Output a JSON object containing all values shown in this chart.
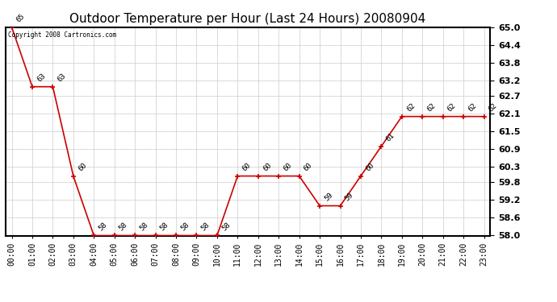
{
  "title": "Outdoor Temperature per Hour (Last 24 Hours) 20080904",
  "copyright_text": "Copyright 2008 Cartronics.com",
  "hours": [
    0,
    1,
    2,
    3,
    4,
    5,
    6,
    7,
    8,
    9,
    10,
    11,
    12,
    13,
    14,
    15,
    16,
    17,
    18,
    19,
    20,
    21,
    22,
    23
  ],
  "hour_labels": [
    "00:00",
    "01:00",
    "02:00",
    "03:00",
    "04:00",
    "05:00",
    "06:00",
    "07:00",
    "08:00",
    "09:00",
    "10:00",
    "11:00",
    "12:00",
    "13:00",
    "14:00",
    "15:00",
    "16:00",
    "17:00",
    "18:00",
    "19:00",
    "20:00",
    "21:00",
    "22:00",
    "23:00"
  ],
  "temps": [
    65,
    63,
    63,
    60,
    58,
    58,
    58,
    58,
    58,
    58,
    58,
    60,
    60,
    60,
    60,
    59,
    59,
    60,
    61,
    62,
    62,
    62,
    62,
    62
  ],
  "line_color": "#cc0000",
  "marker_color": "#cc0000",
  "grid_color": "#cccccc",
  "bg_color": "#ffffff",
  "ylim_min": 58.0,
  "ylim_max": 65.0,
  "yticks": [
    58.0,
    58.6,
    59.2,
    59.8,
    60.3,
    60.9,
    61.5,
    62.1,
    62.7,
    63.2,
    63.8,
    64.4,
    65.0
  ],
  "title_fontsize": 11,
  "label_fontsize": 7,
  "annotation_fontsize": 6.5,
  "spine_color": "#000000"
}
